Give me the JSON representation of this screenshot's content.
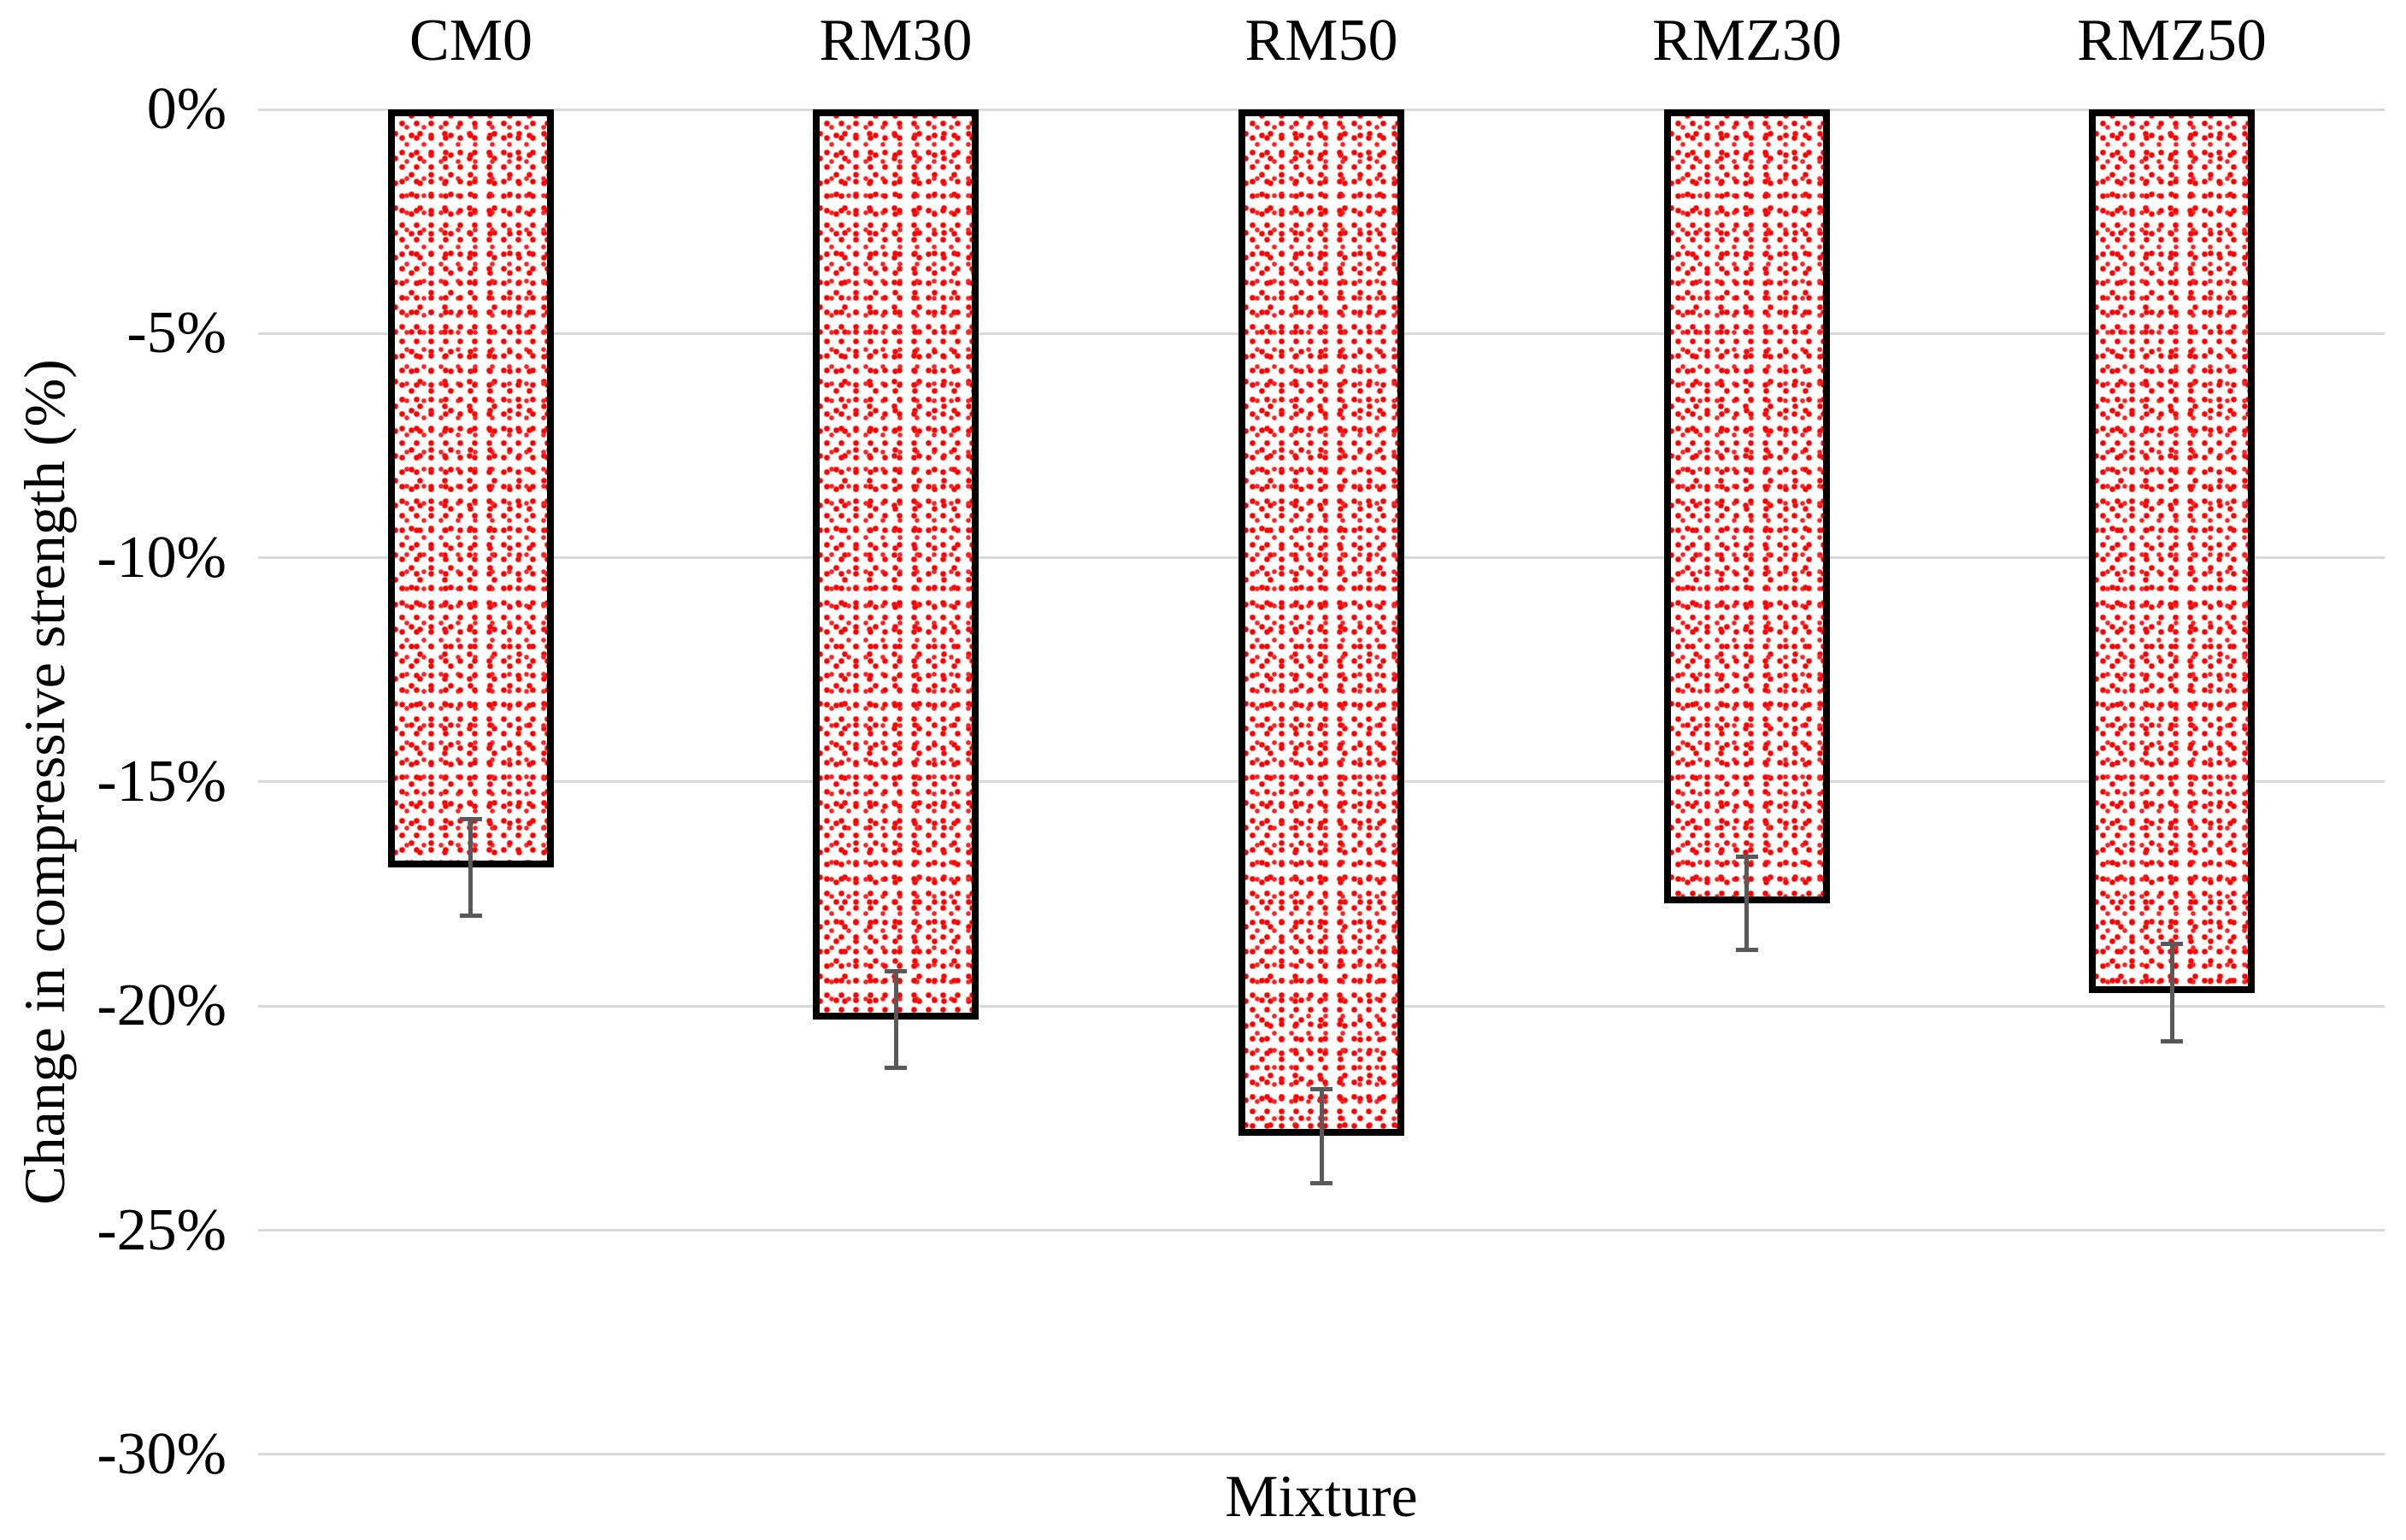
{
  "chart_data": {
    "type": "bar",
    "title": "",
    "categories": [
      "CM0",
      "RM30",
      "RM50",
      "RMZ30",
      "RMZ50"
    ],
    "values": [
      -16.9,
      -20.3,
      -22.9,
      -17.7,
      -19.7
    ],
    "error_bars": [
      1.08,
      1.07,
      1.05,
      1.04,
      1.08
    ],
    "xlabel": "Mixture",
    "ylabel": "Change in compressive strength (%)",
    "ylim": [
      -30,
      0
    ],
    "ytick_step": -5,
    "ytick_values": [
      0,
      -5,
      -10,
      -15,
      -20,
      -25,
      -30
    ],
    "ytick_labels": [
      "0%",
      "-5%",
      "-10%",
      "-15%",
      "-20%",
      "-25%",
      "-30%"
    ],
    "grid": true,
    "legend": false,
    "bar_pattern": "random red dots on white with thick black outline",
    "category_label_position": "above plot area"
  },
  "colors": {
    "dot": "#FF0000",
    "bar_background": "#FFFFFF",
    "bar_border": "#000000",
    "gridline": "#D9D9D9",
    "error_bar": "#595959",
    "text": "#000000",
    "page_background": "#FFFFFF"
  }
}
